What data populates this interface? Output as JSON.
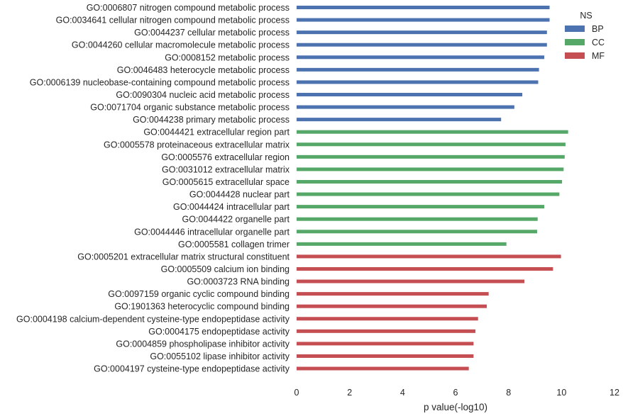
{
  "chart_data": {
    "type": "bar",
    "orientation": "horizontal",
    "xlabel": "p value(-log10)",
    "xlim": [
      0,
      12
    ],
    "xticks": [
      0,
      2,
      4,
      6,
      8,
      10,
      12
    ],
    "grid": false,
    "legend": {
      "title": "NS",
      "placement": "top-right",
      "entries": [
        {
          "name": "BP",
          "color": "#4c72b0"
        },
        {
          "name": "CC",
          "color": "#55a868"
        },
        {
          "name": "MF",
          "color": "#c44e52"
        }
      ]
    },
    "categories": [
      "GO:0006807 nitrogen compound metabolic process",
      "GO:0034641 cellular nitrogen compound metabolic process",
      "GO:0044237 cellular metabolic process",
      "GO:0044260 cellular macromolecule metabolic process",
      "GO:0008152 metabolic process",
      "GO:0046483 heterocycle metabolic process",
      "GO:0006139 nucleobase-containing compound metabolic process",
      "GO:0090304 nucleic acid metabolic process",
      "GO:0071704 organic substance metabolic process",
      "GO:0044238 primary metabolic process",
      "GO:0044421 extracellular region part",
      "GO:0005578 proteinaceous extracellular matrix",
      "GO:0005576 extracellular region",
      "GO:0031012 extracellular matrix",
      "GO:0005615 extracellular space",
      "GO:0044428 nuclear part",
      "GO:0044424 intracellular part",
      "GO:0044422 organelle part",
      "GO:0044446 intracellular organelle part",
      "GO:0005581 collagen trimer",
      "GO:0005201 extracellular matrix structural constituent",
      "GO:0005509 calcium ion binding",
      "GO:0003723 RNA binding",
      "GO:0097159 organic cyclic compound binding",
      "GO:1901363 heterocyclic compound binding",
      "GO:0004198 calcium-dependent cysteine-type endopeptidase activity",
      "GO:0004175 endopeptidase activity",
      "GO:0004859 phospholipase inhibitor activity",
      "GO:0055102 lipase inhibitor activity",
      "GO:0004197 cysteine-type endopeptidase activity"
    ],
    "values": [
      9.55,
      9.55,
      9.45,
      9.45,
      9.35,
      9.15,
      9.12,
      8.52,
      8.22,
      7.72,
      10.25,
      10.15,
      10.12,
      10.08,
      10.02,
      9.92,
      9.35,
      9.1,
      9.08,
      7.92,
      9.98,
      9.68,
      8.6,
      7.25,
      7.18,
      6.85,
      6.75,
      6.68,
      6.68,
      6.5
    ],
    "groups": [
      "BP",
      "BP",
      "BP",
      "BP",
      "BP",
      "BP",
      "BP",
      "BP",
      "BP",
      "BP",
      "CC",
      "CC",
      "CC",
      "CC",
      "CC",
      "CC",
      "CC",
      "CC",
      "CC",
      "CC",
      "MF",
      "MF",
      "MF",
      "MF",
      "MF",
      "MF",
      "MF",
      "MF",
      "MF",
      "MF"
    ]
  }
}
